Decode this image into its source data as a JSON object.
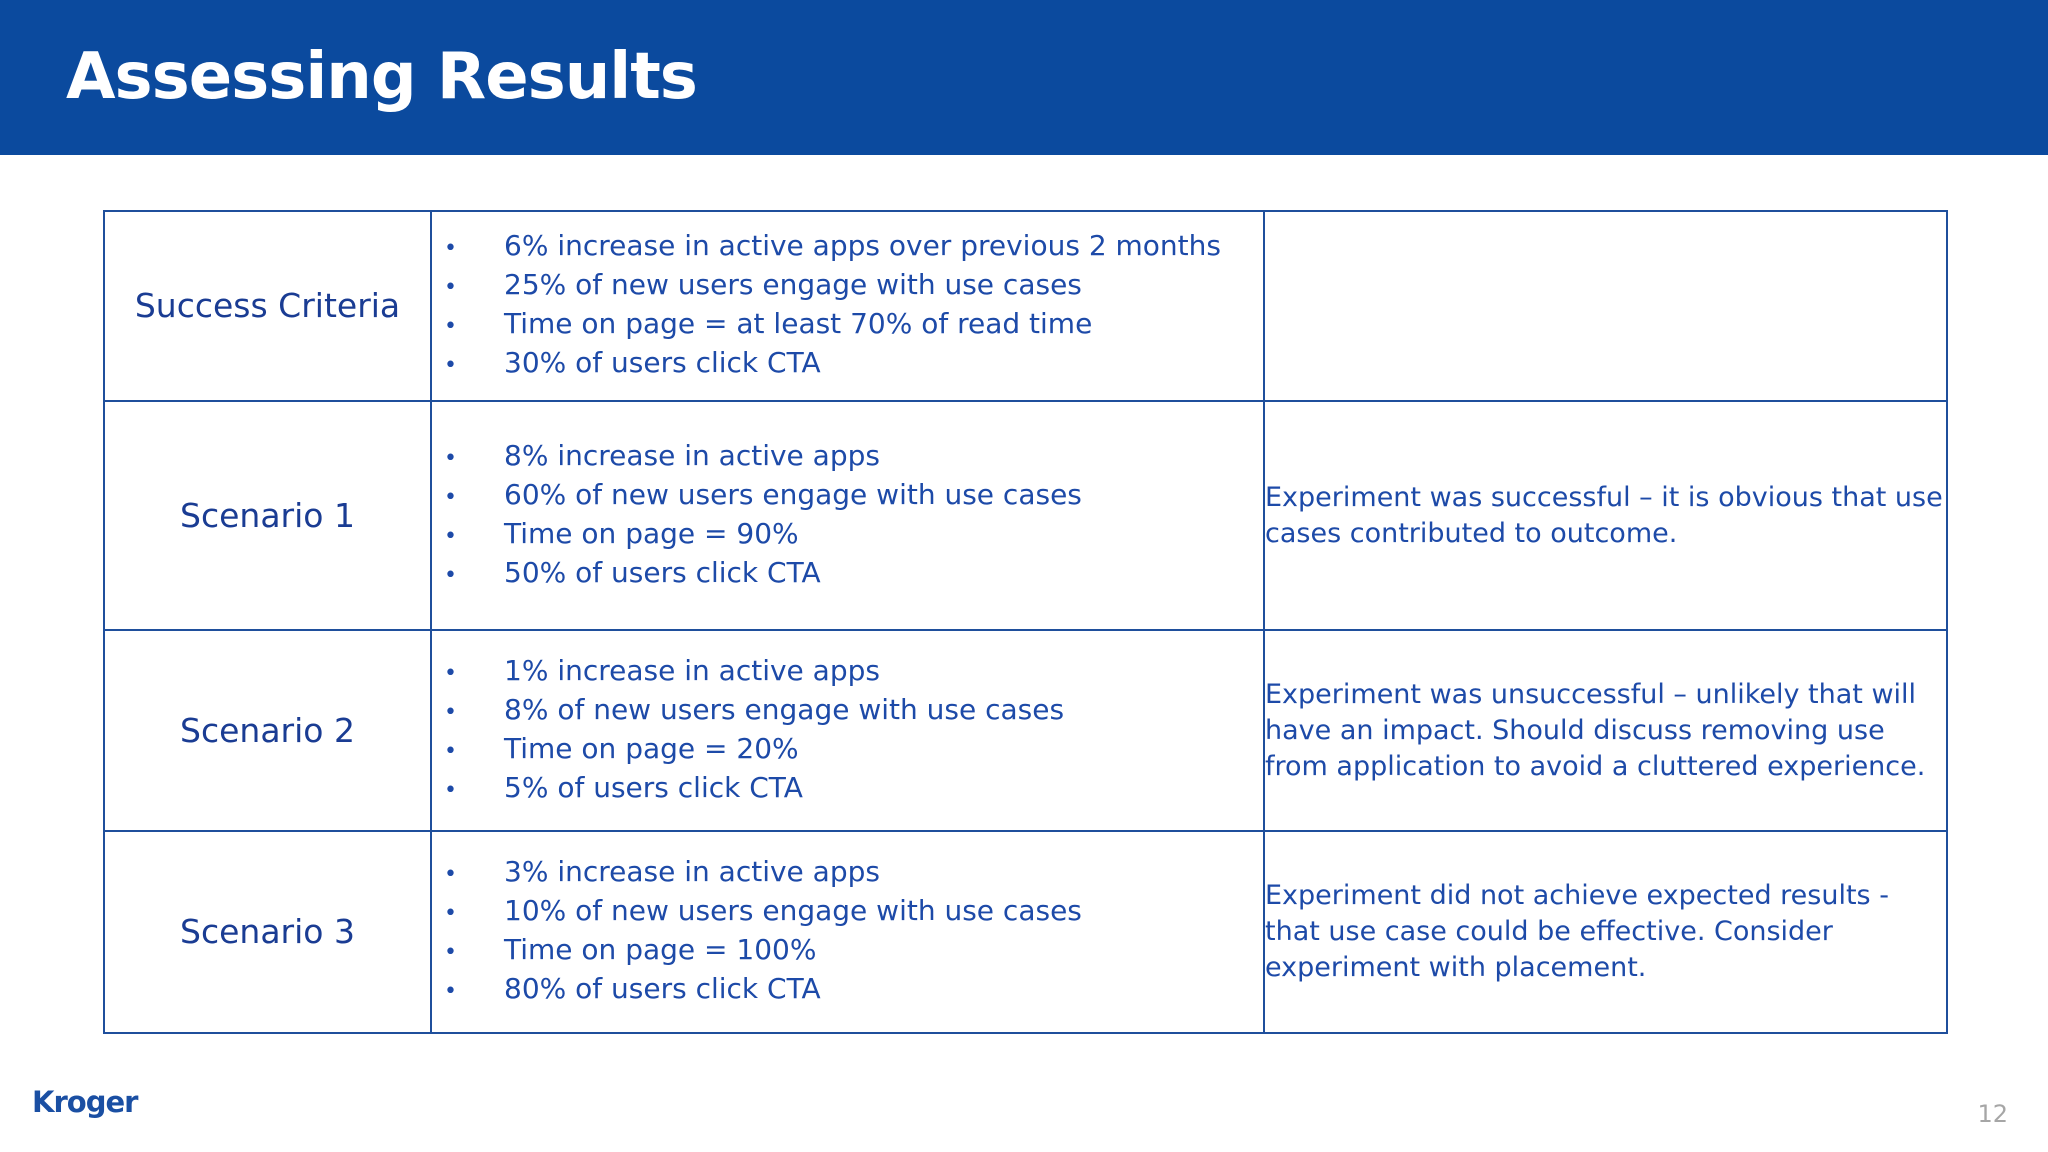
{
  "header": {
    "title": "Assessing Results",
    "background_color": "#0b4a9e"
  },
  "table": {
    "rows": [
      {
        "label": "Success Criteria",
        "metrics": [
          "6% increase in active apps over previous 2 months",
          "25% of new users engage with use cases",
          "Time on page = at least 70% of read time",
          "30% of users click CTA"
        ],
        "outcome": ""
      },
      {
        "label": "Scenario 1",
        "metrics": [
          "8% increase in active apps",
          "60% of new users engage with use cases",
          "Time on page = 90%",
          "50% of users click CTA"
        ],
        "outcome": "Experiment was successful – it is obvious that use cases contributed to outcome."
      },
      {
        "label": "Scenario 2",
        "metrics": [
          "1% increase in active apps",
          "8% of new users engage with use cases",
          "Time on page = 20%",
          "5% of users click CTA"
        ],
        "outcome": "Experiment was unsuccessful – unlikely that will have an impact. Should discuss removing use from application to avoid a cluttered experience."
      },
      {
        "label": "Scenario 3",
        "metrics": [
          "3% increase in active apps",
          "10% of new users engage with use cases",
          "Time on page = 100%",
          "80% of users click CTA"
        ],
        "outcome": "Experiment did not achieve expected results - that use case could be effective. Consider experiment with placement."
      }
    ]
  },
  "footer": {
    "logo_text": "Kroger",
    "page_number": "12"
  },
  "colors": {
    "accent": "#0b4a9e",
    "text": "#1d4aa8",
    "border": "#1f4f9c",
    "page_number": "#a6a6a6"
  }
}
